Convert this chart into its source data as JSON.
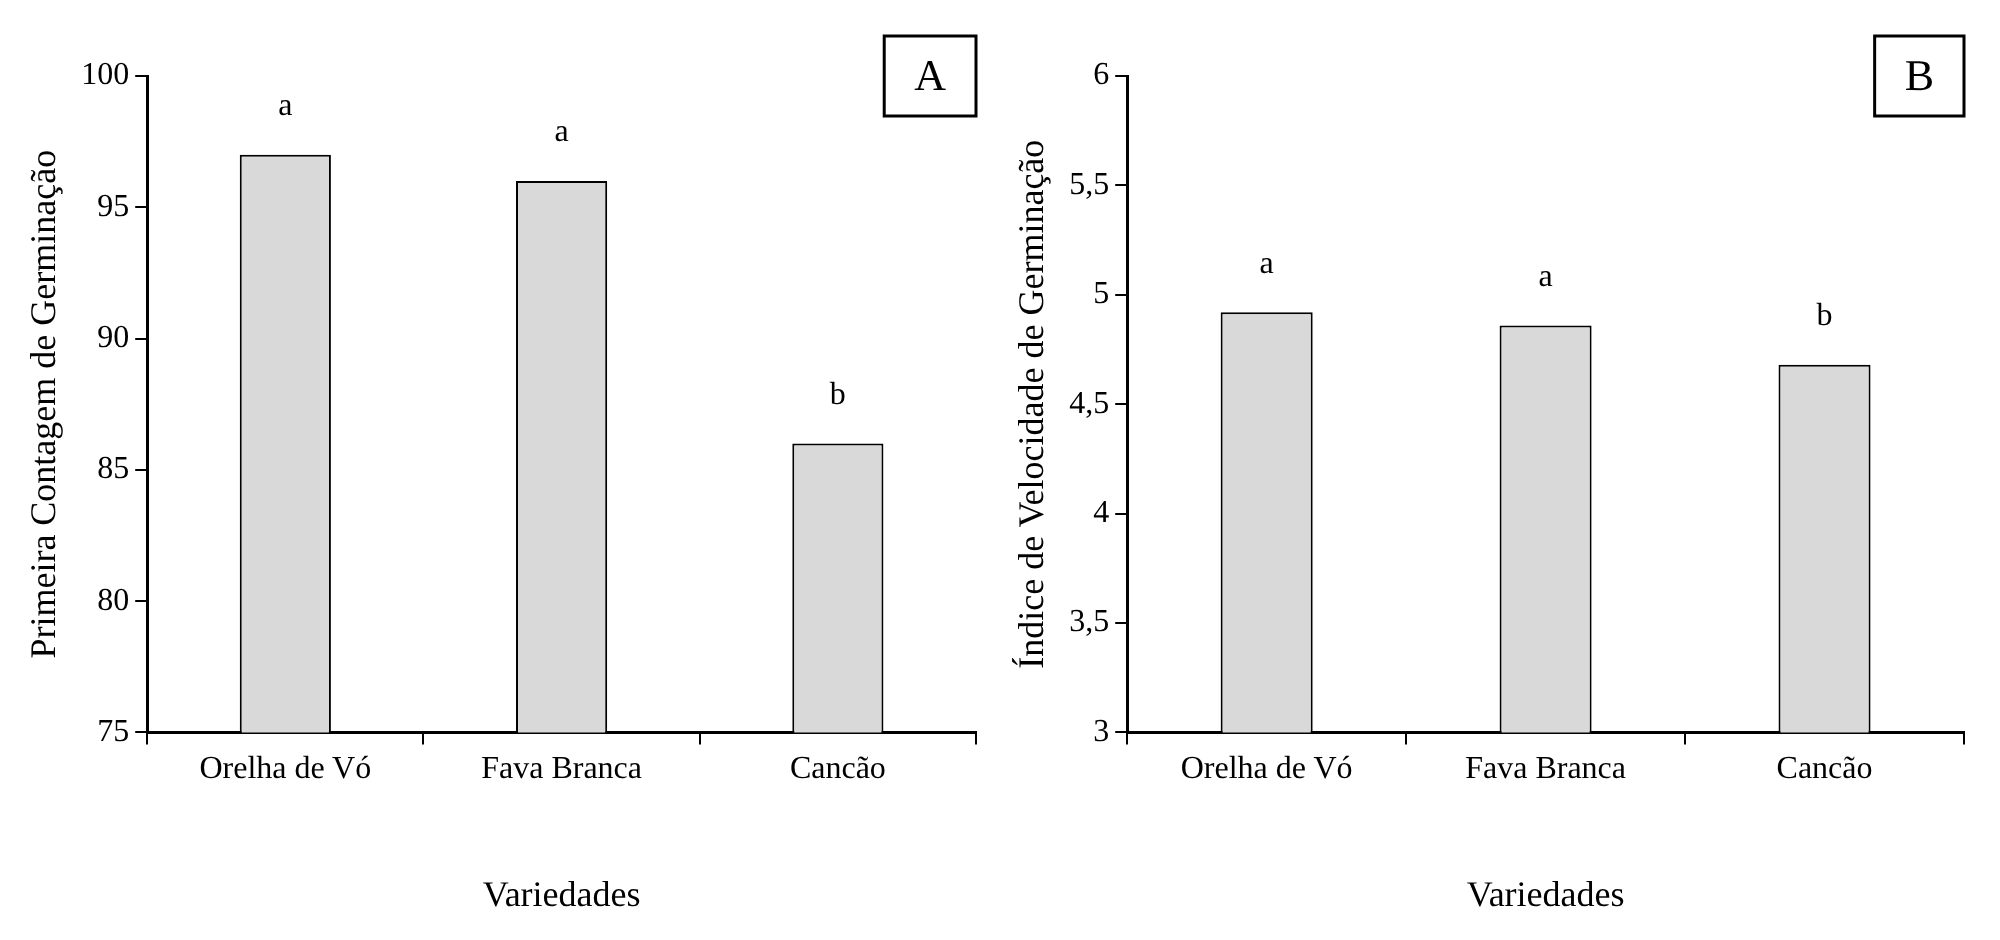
{
  "chart_data": [
    {
      "type": "bar",
      "xlabel": "Variedades",
      "ylabel": "Primeira Contagem de Germinação",
      "categories": [
        "Orelha de Vó",
        "Fava Branca",
        "Cancão"
      ],
      "values": [
        97,
        96,
        86
      ],
      "color": "#d9d9d9",
      "ylim": [
        75,
        100
      ],
      "yticks": [
        75,
        80,
        85,
        90,
        95,
        100
      ],
      "grid": false,
      "legend": false,
      "annotations": [
        "A",
        {
          "text": "a",
          "x": "Orelha de Vó",
          "y": 97
        },
        {
          "text": "a",
          "x": "Fava Branca",
          "y": 96
        },
        {
          "text": "b",
          "x": "Cancão",
          "y": 86
        }
      ]
    },
    {
      "type": "bar",
      "xlabel": "Variedades",
      "ylabel": "Índice de Velocidade de Germinação",
      "categories": [
        "Orelha de Vó",
        "Fava Branca",
        "Cancão"
      ],
      "values": [
        4.92,
        4.86,
        4.68
      ],
      "color": "#d9d9d9",
      "ylim": [
        3,
        6
      ],
      "yticks": [
        3,
        {
          "value": 3.5,
          "label": "3,5"
        },
        4,
        {
          "value": 4.5,
          "label": "4,5"
        },
        5,
        {
          "value": 5.5,
          "label": "5,5"
        },
        6
      ],
      "grid": false,
      "legend": false,
      "annotations": [
        "B",
        {
          "text": "a",
          "x": "Orelha de Vó",
          "y": 4.92
        },
        {
          "text": "a",
          "x": "Fava Branca",
          "y": 4.86
        },
        {
          "text": "b",
          "x": "Cancão",
          "y": 4.68
        }
      ]
    }
  ]
}
